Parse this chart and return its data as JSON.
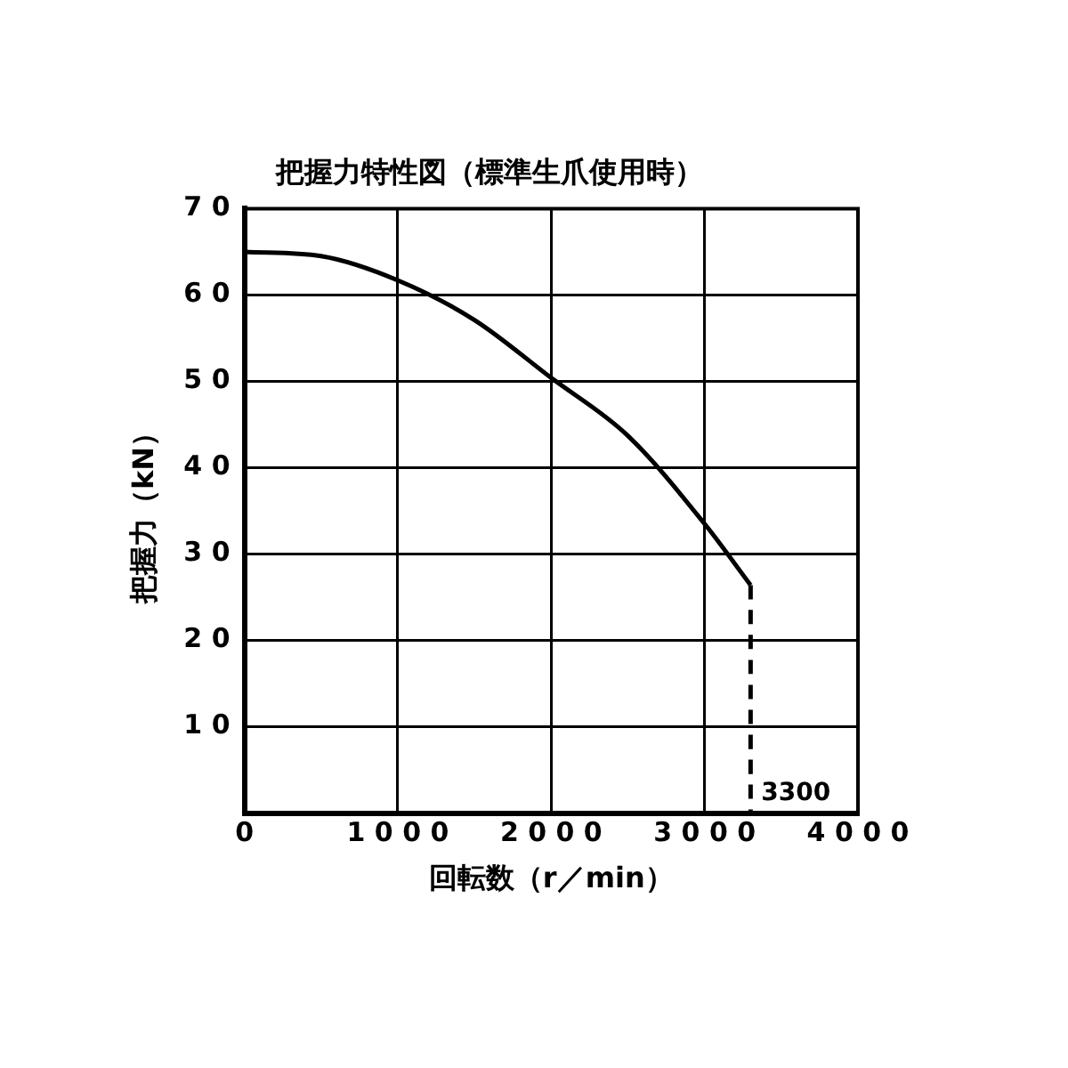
{
  "chart_data": {
    "type": "line",
    "title": "把握力特性図（標準生爪使用時）",
    "xlabel": "回転数（r／min）",
    "ylabel": "把握力（kN）",
    "series": [
      {
        "color": "#000000",
        "line_style": "solid",
        "x": [
          0,
          500,
          1000,
          1500,
          2000,
          2500,
          3000,
          3300
        ],
        "values": [
          65.0,
          64.5,
          61.7,
          57.1,
          50.4,
          43.7,
          33.5,
          26.4
        ]
      },
      {
        "color": "#000000",
        "line_style": "dashed",
        "x": [
          3300,
          3300
        ],
        "values": [
          26.4,
          0
        ]
      }
    ],
    "xlim": [
      0,
      4000
    ],
    "xticks": [
      0,
      1000,
      2000,
      3000,
      4000
    ],
    "ylim": [
      0,
      70
    ],
    "yticks": [
      {
        "value": 0,
        "label": null
      },
      10,
      20,
      30,
      40,
      50,
      60,
      70
    ],
    "grid": true,
    "legend": false,
    "marker": "none",
    "annotations": [
      {
        "text": "3300",
        "x": 3300,
        "y": 0
      }
    ]
  }
}
